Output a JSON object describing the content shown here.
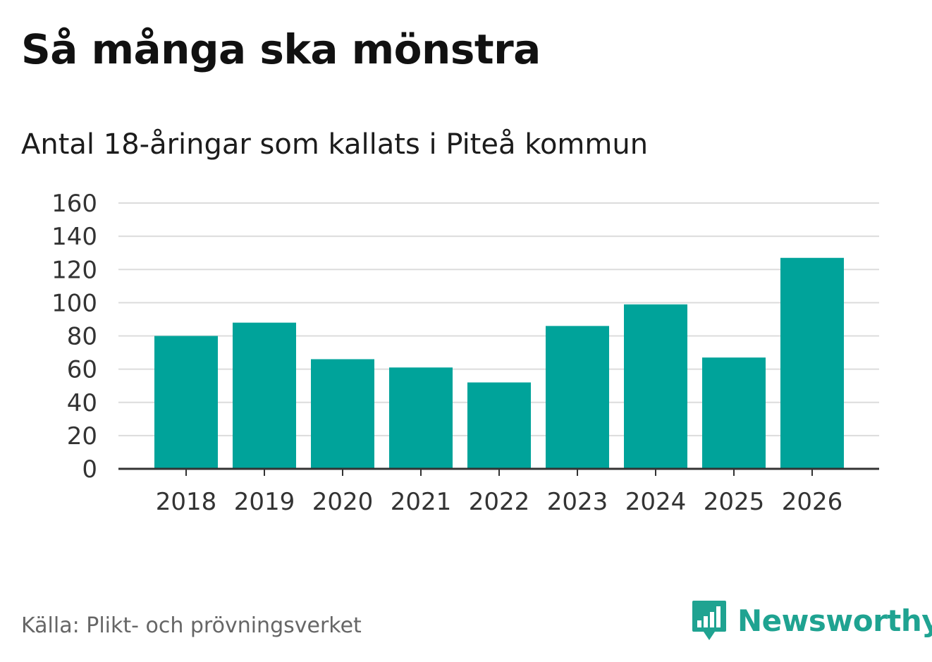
{
  "chart_data": {
    "type": "bar",
    "title": "Så många ska mönstra",
    "subtitle": "Antal 18-åringar som kallats i Piteå kommun",
    "categories": [
      "2018",
      "2019",
      "2020",
      "2021",
      "2022",
      "2023",
      "2024",
      "2025",
      "2026"
    ],
    "values": [
      80,
      88,
      66,
      61,
      52,
      86,
      99,
      67,
      127
    ],
    "xlabel": "",
    "ylabel": "",
    "ylim": [
      0,
      160
    ],
    "yticks": [
      "0",
      "20",
      "40",
      "60",
      "80",
      "100",
      "120",
      "140",
      "160"
    ],
    "grid": true,
    "bar_color": "#00a39a",
    "grid_color": "#dcdcdc",
    "axis_color": "#333333"
  },
  "footer": {
    "source": "Källa: Plikt- och prövningsverket",
    "brand": "Newsworthy",
    "brand_color": "#1fa391",
    "logo_icon": "bar-chart-speech-icon"
  }
}
